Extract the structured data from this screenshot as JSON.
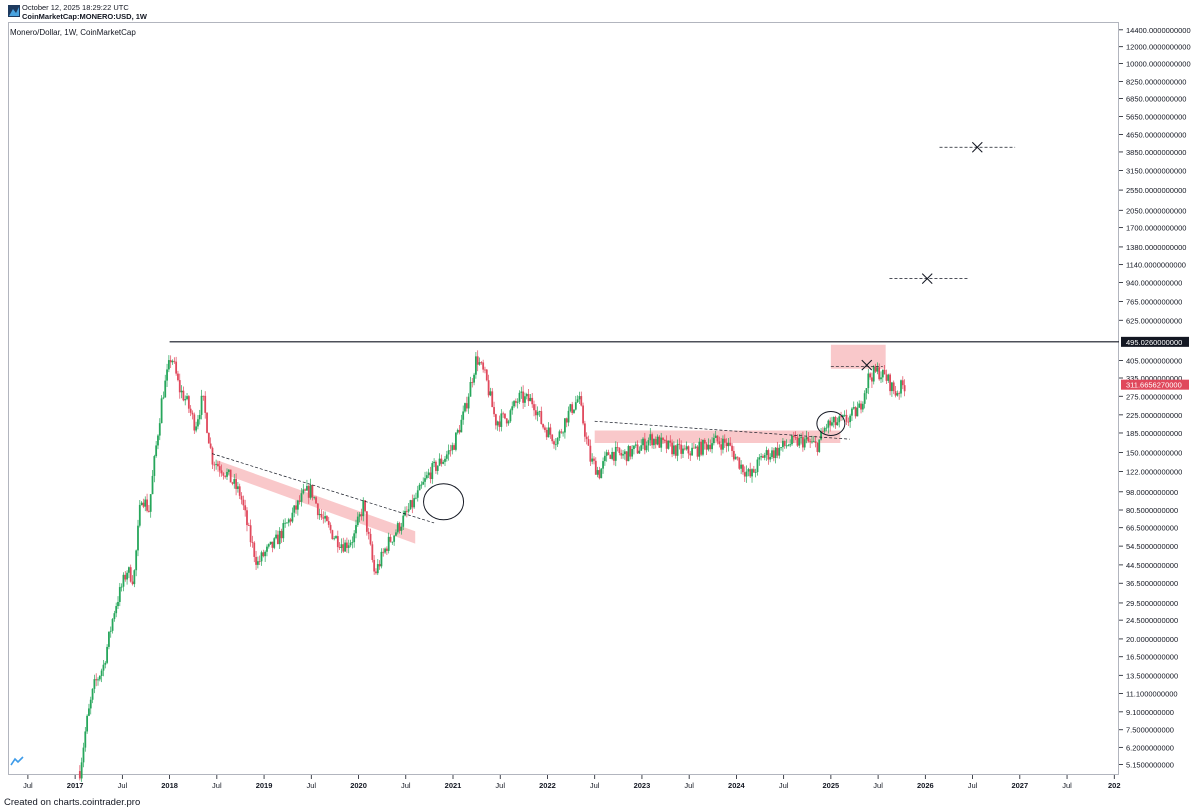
{
  "header": {
    "timestamp": "October 12, 2025 18:29:22 UTC",
    "symbol": "CoinMarketCap:MONERO:USD, 1W"
  },
  "legend": "Monero/Dollar, 1W, CoinMarketCap",
  "footer": "Created on charts.cointrader.pro",
  "colors": {
    "up": "#26a65b",
    "down": "#e0485c",
    "zone": "#f7b6b8",
    "axis": "#b2b5be"
  },
  "chart_data": {
    "type": "candlestick",
    "scale": "log",
    "ylim": [
      4.6,
      15500
    ],
    "yticks": [
      {
        "label": "14400.0000000000",
        "v": 14400
      },
      {
        "label": "12000.0000000000",
        "v": 12000
      },
      {
        "label": "10000.0000000000",
        "v": 10000
      },
      {
        "label": "8250.0000000000",
        "v": 8250
      },
      {
        "label": "6850.0000000000",
        "v": 6850
      },
      {
        "label": "5650.0000000000",
        "v": 5650
      },
      {
        "label": "4650.0000000000",
        "v": 4650
      },
      {
        "label": "3850.0000000000",
        "v": 3850
      },
      {
        "label": "3150.0000000000",
        "v": 3150
      },
      {
        "label": "2550.0000000000",
        "v": 2550
      },
      {
        "label": "2050.0000000000",
        "v": 2050
      },
      {
        "label": "1700.0000000000",
        "v": 1700
      },
      {
        "label": "1380.0000000000",
        "v": 1380
      },
      {
        "label": "1140.0000000000",
        "v": 1140
      },
      {
        "label": "940.0000000000",
        "v": 940
      },
      {
        "label": "765.0000000000",
        "v": 765
      },
      {
        "label": "625.0000000000",
        "v": 625
      },
      {
        "label": "495.0260000000",
        "v": 495.026,
        "style": "dark"
      },
      {
        "label": "405.0000000000",
        "v": 405
      },
      {
        "label": "335.0000000000",
        "v": 335
      },
      {
        "label": "311.6656270000",
        "v": 311.665627,
        "style": "red"
      },
      {
        "label": "275.0000000000",
        "v": 275
      },
      {
        "label": "225.0000000000",
        "v": 225
      },
      {
        "label": "185.0000000000",
        "v": 185
      },
      {
        "label": "150.0000000000",
        "v": 150
      },
      {
        "label": "122.0000000000",
        "v": 122
      },
      {
        "label": "98.0000000000",
        "v": 98
      },
      {
        "label": "80.5000000000",
        "v": 80.5
      },
      {
        "label": "66.5000000000",
        "v": 66.5
      },
      {
        "label": "54.5000000000",
        "v": 54.5
      },
      {
        "label": "44.5000000000",
        "v": 44.5
      },
      {
        "label": "36.5000000000",
        "v": 36.5
      },
      {
        "label": "29.5000000000",
        "v": 29.5
      },
      {
        "label": "24.5000000000",
        "v": 24.5
      },
      {
        "label": "20.0000000000",
        "v": 20
      },
      {
        "label": "16.5000000000",
        "v": 16.5
      },
      {
        "label": "13.5000000000",
        "v": 13.5
      },
      {
        "label": "11.1000000000",
        "v": 11.1
      },
      {
        "label": "9.1000000000",
        "v": 9.1
      },
      {
        "label": "7.5000000000",
        "v": 7.5
      },
      {
        "label": "6.2000000000",
        "v": 6.2
      },
      {
        "label": "5.1500000000",
        "v": 5.15
      }
    ],
    "xticks": [
      {
        "label": "Jul",
        "t": 2016.5
      },
      {
        "label": "2017",
        "t": 2017.0,
        "bold": true
      },
      {
        "label": "Jul",
        "t": 2017.5
      },
      {
        "label": "2018",
        "t": 2018.0,
        "bold": true
      },
      {
        "label": "Jul",
        "t": 2018.5
      },
      {
        "label": "2019",
        "t": 2019.0,
        "bold": true
      },
      {
        "label": "Jul",
        "t": 2019.5
      },
      {
        "label": "2020",
        "t": 2020.0,
        "bold": true
      },
      {
        "label": "Jul",
        "t": 2020.5
      },
      {
        "label": "2021",
        "t": 2021.0,
        "bold": true
      },
      {
        "label": "Jul",
        "t": 2021.5
      },
      {
        "label": "2022",
        "t": 2022.0,
        "bold": true
      },
      {
        "label": "Jul",
        "t": 2022.5
      },
      {
        "label": "2023",
        "t": 2023.0,
        "bold": true
      },
      {
        "label": "Jul",
        "t": 2023.5
      },
      {
        "label": "2024",
        "t": 2024.0,
        "bold": true
      },
      {
        "label": "Jul",
        "t": 2024.5
      },
      {
        "label": "2025",
        "t": 2025.0,
        "bold": true
      },
      {
        "label": "Jul",
        "t": 2025.5
      },
      {
        "label": "2026",
        "t": 2026.0,
        "bold": true
      },
      {
        "label": "Jul",
        "t": 2026.5
      },
      {
        "label": "2027",
        "t": 2027.0,
        "bold": true
      },
      {
        "label": "Jul",
        "t": 2027.5
      },
      {
        "label": "202",
        "t": 2028.0,
        "bold": true
      }
    ],
    "xlim": [
      2016.3,
      2028.05
    ],
    "anchors": [
      [
        2017.05,
        4.8
      ],
      [
        2017.12,
        8
      ],
      [
        2017.2,
        12
      ],
      [
        2017.3,
        15
      ],
      [
        2017.42,
        28
      ],
      [
        2017.55,
        42
      ],
      [
        2017.62,
        38
      ],
      [
        2017.7,
        95
      ],
      [
        2017.78,
        80
      ],
      [
        2017.85,
        150
      ],
      [
        2017.92,
        270
      ],
      [
        2018.02,
        430
      ],
      [
        2018.1,
        300
      ],
      [
        2018.18,
        260
      ],
      [
        2018.27,
        200
      ],
      [
        2018.35,
        270
      ],
      [
        2018.45,
        140
      ],
      [
        2018.6,
        120
      ],
      [
        2018.75,
        95
      ],
      [
        2018.85,
        60
      ],
      [
        2018.93,
        45
      ],
      [
        2019.0,
        50
      ],
      [
        2019.1,
        55
      ],
      [
        2019.25,
        70
      ],
      [
        2019.42,
        95
      ],
      [
        2019.5,
        100
      ],
      [
        2019.6,
        75
      ],
      [
        2019.75,
        60
      ],
      [
        2019.85,
        55
      ],
      [
        2019.95,
        60
      ],
      [
        2020.05,
        85
      ],
      [
        2020.17,
        40
      ],
      [
        2020.3,
        55
      ],
      [
        2020.45,
        70
      ],
      [
        2020.6,
        90
      ],
      [
        2020.75,
        120
      ],
      [
        2020.9,
        140
      ],
      [
        2021.0,
        160
      ],
      [
        2021.12,
        230
      ],
      [
        2021.25,
        420
      ],
      [
        2021.35,
        330
      ],
      [
        2021.45,
        210
      ],
      [
        2021.58,
        220
      ],
      [
        2021.7,
        270
      ],
      [
        2021.85,
        260
      ],
      [
        2021.95,
        200
      ],
      [
        2022.1,
        170
      ],
      [
        2022.2,
        220
      ],
      [
        2022.33,
        270
      ],
      [
        2022.45,
        140
      ],
      [
        2022.55,
        120
      ],
      [
        2022.65,
        150
      ],
      [
        2022.8,
        145
      ],
      [
        2022.95,
        155
      ],
      [
        2023.1,
        175
      ],
      [
        2023.25,
        160
      ],
      [
        2023.45,
        150
      ],
      [
        2023.6,
        155
      ],
      [
        2023.75,
        170
      ],
      [
        2023.9,
        165
      ],
      [
        2024.05,
        130
      ],
      [
        2024.15,
        115
      ],
      [
        2024.28,
        145
      ],
      [
        2024.4,
        150
      ],
      [
        2024.55,
        165
      ],
      [
        2024.72,
        170
      ],
      [
        2024.85,
        160
      ],
      [
        2024.95,
        200
      ],
      [
        2025.05,
        205
      ],
      [
        2025.18,
        215
      ],
      [
        2025.3,
        240
      ],
      [
        2025.4,
        340
      ],
      [
        2025.5,
        360
      ],
      [
        2025.6,
        330
      ],
      [
        2025.68,
        285
      ],
      [
        2025.75,
        305
      ],
      [
        2025.79,
        312
      ]
    ],
    "annotations": {
      "resistance_level": 495.026,
      "zones": [
        {
          "t1": 2018.5,
          "t2": 2020.6,
          "v1": [
            138,
            122
          ],
          "v2": [
            64,
            56
          ]
        },
        {
          "t1": 2022.5,
          "t2": 2025.1,
          "v1": [
            190,
            166
          ],
          "v2": [
            190,
            166
          ]
        },
        {
          "t1": 2025.0,
          "t2": 2025.58,
          "v1": [
            480,
            370
          ],
          "v2": [
            480,
            370
          ]
        }
      ],
      "dashed_lines": [
        {
          "t1": 2018.45,
          "v1": 148,
          "t2": 2020.8,
          "v2": 70
        },
        {
          "t1": 2022.5,
          "v1": 210,
          "t2": 2025.2,
          "v2": 173
        },
        {
          "t1": 2025.0,
          "v1": 380,
          "t2": 2025.55,
          "v2": 380
        },
        {
          "t1": 2026.15,
          "v1": 4050,
          "t2": 2026.95,
          "v2": 4050
        },
        {
          "t1": 2025.62,
          "v1": 980,
          "t2": 2026.45,
          "v2": 980
        }
      ],
      "x_marks": [
        {
          "t": 2025.38,
          "v": 385
        },
        {
          "t": 2026.55,
          "v": 4050
        },
        {
          "t": 2026.02,
          "v": 980
        }
      ],
      "circles": [
        {
          "t": 2020.9,
          "v": 88,
          "rx": 20,
          "ry": 18
        },
        {
          "t": 2025.0,
          "v": 205,
          "rx": 14,
          "ry": 12
        }
      ]
    }
  }
}
